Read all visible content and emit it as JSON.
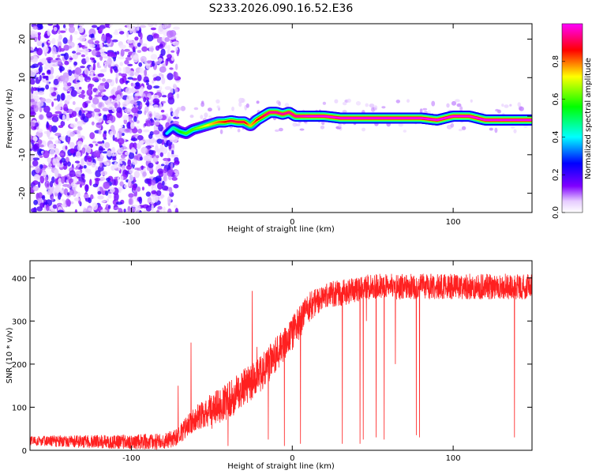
{
  "figure": {
    "title": "S233.2026.090.16.52.E36"
  },
  "chart_data": [
    {
      "type": "heatmap",
      "title": "S233.2026.090.16.52.E36",
      "xlabel": "Height of straight line (km)",
      "ylabel": "Frequency (Hz)",
      "xlim": [
        -163,
        149
      ],
      "ylim": [
        -25,
        24
      ],
      "xticks": [
        -100,
        0,
        100
      ],
      "yticks": [
        -20,
        -10,
        0,
        10,
        20
      ],
      "colorbar": {
        "label": "Normalized spectral amplitude",
        "range": [
          0,
          1
        ],
        "ticks": [
          "0.0",
          "0.2",
          "0.4",
          "0.6",
          "0.8"
        ],
        "colors": [
          "#ffffff",
          "#8000ff",
          "#0000ff",
          "#00ffff",
          "#00ff00",
          "#ffff00",
          "#ff0000",
          "#ff00ff"
        ]
      },
      "ridge": {
        "x": [
          -78,
          -74,
          -70,
          -66,
          -62,
          -58,
          -54,
          -50,
          -46,
          -42,
          -38,
          -34,
          -30,
          -26,
          -22,
          -18,
          -14,
          -10,
          -6,
          -2,
          2,
          10,
          20,
          30,
          40,
          50,
          60,
          70,
          80,
          90,
          100,
          110,
          120,
          130,
          140,
          149
        ],
        "y": [
          -4.5,
          -3,
          -4,
          -4.5,
          -3.5,
          -3,
          -2.5,
          -2,
          -1.5,
          -1.5,
          -1.2,
          -1.5,
          -1.5,
          -2.5,
          -1,
          0,
          1,
          1,
          0.5,
          1,
          0,
          0,
          0,
          -0.5,
          -0.5,
          -0.5,
          -0.5,
          -0.5,
          -0.5,
          -1,
          0,
          0,
          -1,
          -1,
          -1,
          -1
        ],
        "amplitude": [
          0.4,
          0.45,
          0.55,
          0.6,
          0.6,
          0.65,
          0.7,
          0.75,
          0.8,
          0.85,
          0.9,
          0.9,
          0.9,
          0.75,
          0.85,
          0.9,
          0.95,
          0.95,
          0.95,
          0.95,
          0.95,
          1,
          1,
          1,
          1,
          1,
          1,
          1,
          1,
          1,
          1,
          1,
          1,
          1,
          1,
          1
        ]
      },
      "noise_region_x": [
        -163,
        -73
      ]
    },
    {
      "type": "line",
      "xlabel": "Height of straight line (km)",
      "ylabel": "SNR (10 * v/v)",
      "xlim": [
        -163,
        149
      ],
      "ylim": [
        0,
        440
      ],
      "xticks": [
        -100,
        0,
        100
      ],
      "yticks": [
        0,
        100,
        200,
        300,
        400
      ],
      "color": "#ff2020",
      "trend": {
        "x": [
          -163,
          -120,
          -80,
          -72,
          -60,
          -40,
          -20,
          0,
          10,
          20,
          30,
          50,
          149
        ],
        "y": [
          22,
          20,
          20,
          30,
          75,
          115,
          175,
          270,
          330,
          360,
          365,
          380,
          380
        ]
      },
      "noise": [
        [
          -163,
          12
        ],
        [
          -72,
          20
        ],
        [
          -40,
          45
        ],
        [
          0,
          40
        ],
        [
          20,
          30
        ],
        [
          149,
          30
        ]
      ],
      "spikes": [
        [
          -71,
          150
        ],
        [
          -63,
          250
        ],
        [
          -50,
          50
        ],
        [
          -40,
          10
        ],
        [
          -25,
          370
        ],
        [
          -22,
          240
        ],
        [
          -15,
          25
        ],
        [
          -5,
          10
        ],
        [
          5,
          15
        ],
        [
          31,
          15
        ],
        [
          42,
          15
        ],
        [
          44,
          25
        ],
        [
          46,
          300
        ],
        [
          52,
          30
        ],
        [
          57,
          25
        ],
        [
          64,
          200
        ],
        [
          77,
          35
        ],
        [
          79,
          30
        ],
        [
          117,
          350
        ],
        [
          138,
          30
        ],
        [
          138,
          410
        ]
      ]
    }
  ]
}
